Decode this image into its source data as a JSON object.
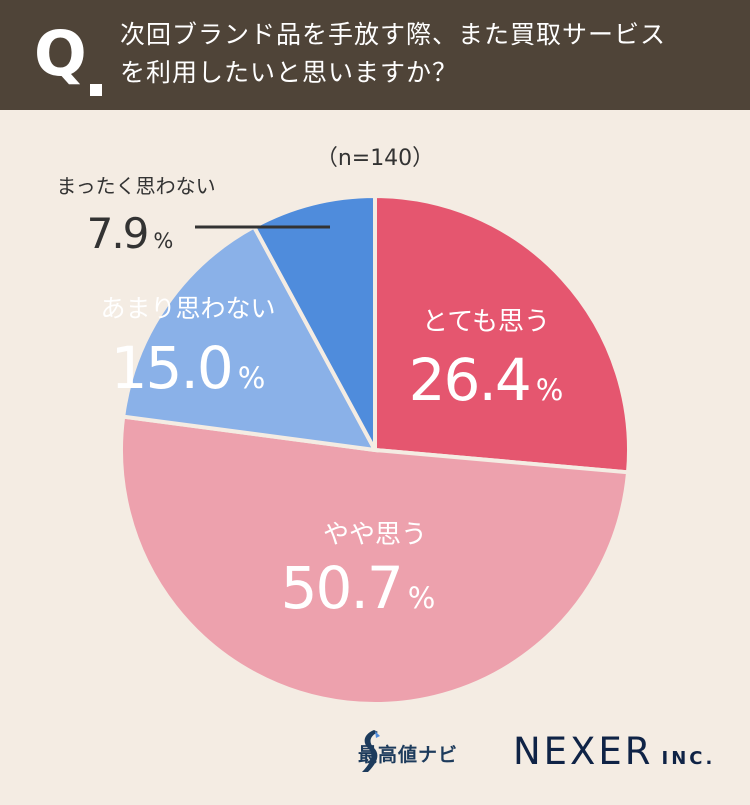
{
  "header": {
    "q_letter": "Q",
    "question_line1": "次回ブランド品を手放す際、また買取サービス",
    "question_line2": "を利用したいと思いますか？"
  },
  "chart_data": {
    "type": "pie",
    "sample_note": "（n=140）",
    "start": "12 o'clock, clockwise",
    "slices": [
      {
        "label": "とても思う",
        "value": 26.4,
        "value_text": "26.4",
        "color": "#e5566f"
      },
      {
        "label": "やや思う",
        "value": 50.7,
        "value_text": "50.7",
        "color": "#eda1ad"
      },
      {
        "label": "あまり思わない",
        "value": 15.0,
        "value_text": "15.0",
        "color": "#8ab1e8"
      },
      {
        "label": "まったく思わない",
        "value": 7.9,
        "value_text": "7.9",
        "color": "#4f8cdc"
      }
    ],
    "percent_sign": "%"
  },
  "footer": {
    "logo1_text": "最高値ナビ",
    "logo2_main": "NEXER",
    "logo2_sub": "INC."
  },
  "colors": {
    "background": "#f4ece3",
    "header": "#4f4438",
    "label_dark": "#333333",
    "label_light_blue": "#ffffff"
  }
}
